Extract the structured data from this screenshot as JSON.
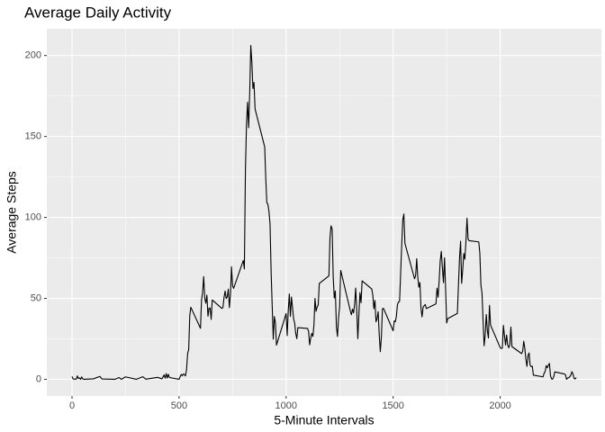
{
  "chart_data": {
    "type": "line",
    "title": "Average Daily Activity",
    "x_label": "5-Minute Intervals",
    "y_label": "Average Steps",
    "xlim": [
      -117.75,
      2472.75
    ],
    "ylim": [
      -10.3,
      216.5
    ],
    "xticks": [
      0,
      500,
      1000,
      1500,
      2000
    ],
    "yticks": [
      0,
      50,
      100,
      150,
      200
    ],
    "grid": true,
    "color": "#000000",
    "x": [
      0,
      5,
      10,
      15,
      20,
      25,
      30,
      35,
      40,
      45,
      50,
      55,
      100,
      130,
      140,
      200,
      220,
      230,
      250,
      300,
      330,
      345,
      400,
      420,
      430,
      435,
      440,
      445,
      450,
      455,
      500,
      505,
      510,
      515,
      520,
      525,
      530,
      535,
      540,
      545,
      550,
      555,
      600,
      605,
      610,
      615,
      620,
      625,
      630,
      635,
      640,
      645,
      650,
      655,
      700,
      705,
      710,
      715,
      720,
      725,
      730,
      735,
      740,
      745,
      750,
      755,
      800,
      805,
      810,
      815,
      820,
      825,
      830,
      835,
      840,
      845,
      850,
      855,
      900,
      905,
      910,
      915,
      920,
      925,
      930,
      935,
      940,
      945,
      950,
      955,
      1000,
      1005,
      1010,
      1015,
      1020,
      1025,
      1030,
      1035,
      1040,
      1045,
      1050,
      1055,
      1100,
      1105,
      1110,
      1115,
      1120,
      1125,
      1130,
      1135,
      1140,
      1145,
      1150,
      1155,
      1200,
      1205,
      1210,
      1215,
      1220,
      1225,
      1230,
      1235,
      1240,
      1245,
      1250,
      1255,
      1300,
      1305,
      1310,
      1315,
      1320,
      1325,
      1330,
      1335,
      1340,
      1345,
      1350,
      1355,
      1400,
      1405,
      1410,
      1415,
      1420,
      1425,
      1430,
      1435,
      1440,
      1445,
      1450,
      1455,
      1500,
      1505,
      1510,
      1515,
      1520,
      1525,
      1530,
      1535,
      1540,
      1545,
      1550,
      1555,
      1600,
      1605,
      1610,
      1615,
      1620,
      1625,
      1630,
      1635,
      1640,
      1645,
      1650,
      1655,
      1700,
      1705,
      1710,
      1715,
      1720,
      1725,
      1730,
      1735,
      1740,
      1745,
      1750,
      1755,
      1800,
      1805,
      1810,
      1815,
      1820,
      1825,
      1830,
      1835,
      1840,
      1845,
      1850,
      1855,
      1900,
      1905,
      1910,
      1915,
      1920,
      1925,
      1930,
      1935,
      1940,
      1945,
      1950,
      1955,
      2000,
      2005,
      2010,
      2015,
      2020,
      2025,
      2030,
      2035,
      2040,
      2045,
      2050,
      2055,
      2100,
      2105,
      2110,
      2115,
      2120,
      2125,
      2130,
      2135,
      2140,
      2145,
      2150,
      2155,
      2200,
      2205,
      2210,
      2215,
      2220,
      2225,
      2230,
      2235,
      2240,
      2245,
      2250,
      2255,
      2300,
      2305,
      2310,
      2315,
      2320,
      2325,
      2330,
      2335,
      2340,
      2345,
      2350,
      2355
    ],
    "values": [
      1.7,
      0.3,
      0.1,
      0.2,
      0.1,
      2.1,
      0.5,
      0.9,
      0,
      1.5,
      0.3,
      0,
      0.3,
      1.8,
      0.2,
      0,
      1.1,
      0,
      1.5,
      0,
      1.6,
      0.1,
      1.2,
      0.3,
      2.7,
      0.7,
      3.5,
      0.8,
      3.1,
      1.1,
      0,
      1.6,
      3.0,
      2.2,
      3.3,
      3,
      2.1,
      6.1,
      16,
      18.3,
      39.5,
      44.5,
      31.5,
      49,
      53.8,
      63.5,
      50,
      47,
      52,
      39,
      44,
      44,
      37,
      49,
      43.8,
      44.4,
      50.5,
      54.5,
      49.9,
      50.9,
      55.7,
      44.3,
      52.3,
      69.5,
      57.8,
      56.2,
      73.4,
      68.2,
      129.4,
      157.5,
      171.2,
      155.4,
      177.3,
      206.2,
      195.9,
      179.6,
      183.4,
      167,
      143.5,
      124,
      109.1,
      108.1,
      103.7,
      95.9,
      66.2,
      45.2,
      24.8,
      38.8,
      35,
      21.1,
      40.6,
      27,
      42.4,
      52.7,
      38.9,
      50.8,
      44.3,
      37.4,
      34.7,
      28.3,
      25.1,
      31.9,
      31.4,
      29.7,
      21.3,
      25.5,
      28.4,
      26.5,
      33.4,
      50,
      42,
      44.6,
      46,
      59.2,
      63.9,
      87.7,
      94.8,
      92.8,
      63.4,
      50.2,
      54.5,
      32.4,
      26.5,
      37.7,
      45,
      67.3,
      42.3,
      39.9,
      43.3,
      41,
      46.2,
      56.4,
      42.8,
      25.1,
      40,
      53.5,
      47.3,
      60.8,
      55.8,
      52,
      43.6,
      48.7,
      35.5,
      37.5,
      41.8,
      27.5,
      17.1,
      26.1,
      43.6,
      43.8,
      30,
      36.1,
      35.5,
      38.8,
      46,
      47.8,
      48.1,
      65.3,
      82.9,
      98.7,
      102.1,
      84,
      62.1,
      64.1,
      74.5,
      63.2,
      56.9,
      59.8,
      43.9,
      38.6,
      44.7,
      45.5,
      46.2,
      43.7,
      46.6,
      56.3,
      50.7,
      61.2,
      73.4,
      79,
      68.9,
      59.7,
      75.1,
      56.5,
      34.8,
      37.5,
      40.7,
      58,
      74.7,
      85.3,
      59.3,
      67.8,
      77.7,
      74.2,
      85.3,
      99.5,
      86.6,
      85.6,
      84.9,
      77.8,
      58,
      53.4,
      36.3,
      20.7,
      27.4,
      40,
      30.2,
      25.5,
      45.7,
      33.5,
      19.6,
      19,
      19.3,
      33.3,
      26.8,
      21.2,
      27.3,
      21.3,
      19.5,
      21.3,
      32.3,
      20.2,
      15.9,
      17.2,
      23.5,
      19.2,
      12.5,
      8,
      14.7,
      16.3,
      8.7,
      7.8,
      8.1,
      2.6,
      1.5,
      3.7,
      4.8,
      8.5,
      7.1,
      8.7,
      9.8,
      2.2,
      0.3,
      0.1,
      1.6,
      4.6,
      3.3,
      2.8,
      0,
      0.8,
      1,
      1.6,
      2.6,
      4.7,
      3.3,
      0.6,
      0.2,
      1.1
    ]
  }
}
